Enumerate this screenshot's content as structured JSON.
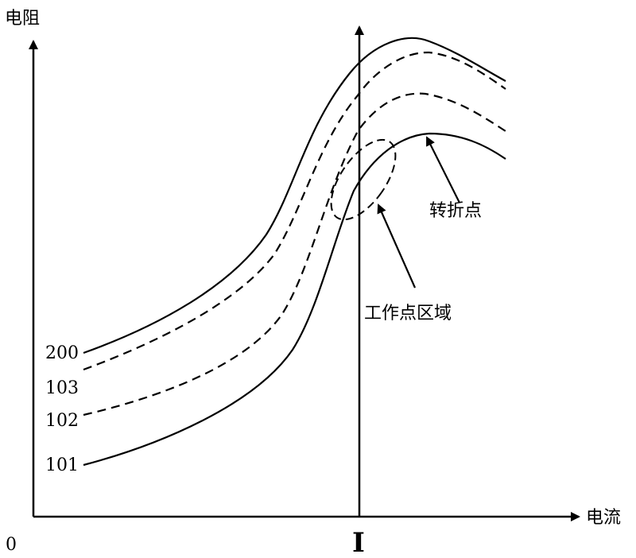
{
  "axes": {
    "y_label": "电阻",
    "x_label": "电流",
    "origin_label": "0",
    "marker_label": "I"
  },
  "curves": [
    {
      "label": "200",
      "style": "solid"
    },
    {
      "label": "103",
      "style": "dashed"
    },
    {
      "label": "102",
      "style": "dashed"
    },
    {
      "label": "101",
      "style": "solid"
    }
  ],
  "annotations": {
    "turning_point": "转折点",
    "working_region": "工作点区域"
  }
}
